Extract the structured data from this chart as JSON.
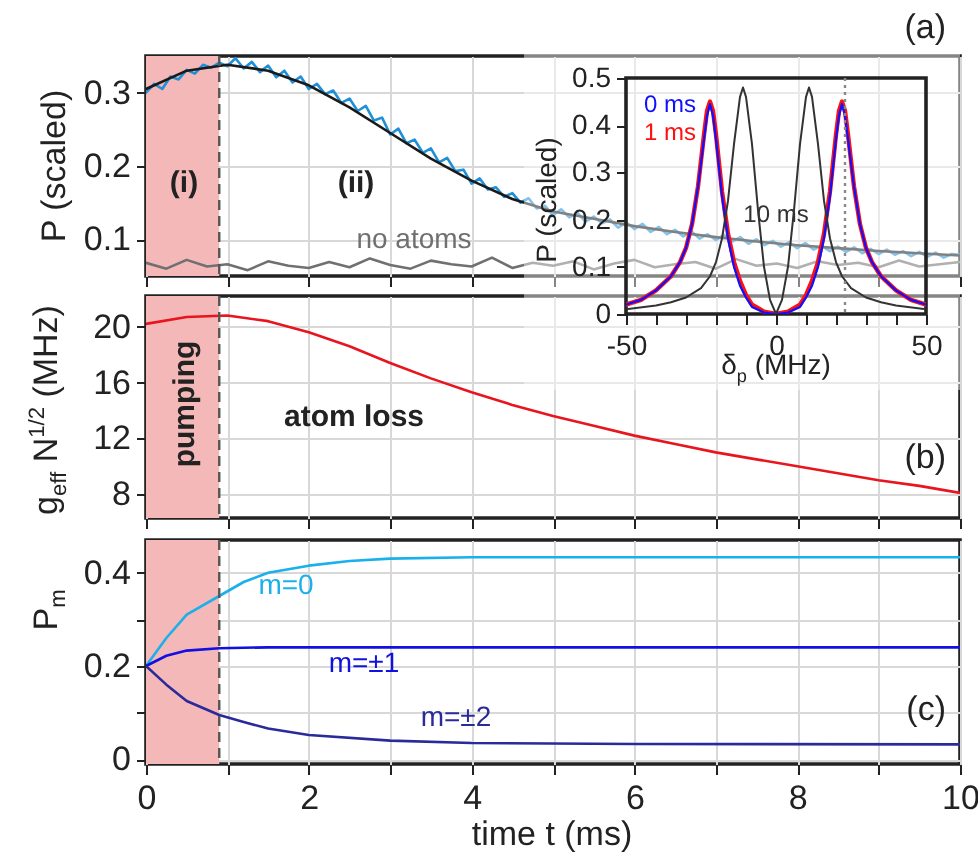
{
  "chart_data": [
    {
      "type": "line",
      "title": "(a)",
      "ylabel": "P (scaled)",
      "xlim": [
        0,
        10
      ],
      "xticks": [
        0,
        1,
        2,
        3,
        4,
        5,
        6,
        7,
        8,
        9,
        10
      ],
      "ylim": [
        0.05,
        0.35
      ],
      "yticks": [
        0.1,
        0.2,
        0.3
      ],
      "grid": true,
      "tick_labels": "y",
      "bands": [
        {
          "axis": "x",
          "from": 0,
          "to": 0.9,
          "label": "(i)",
          "color": "#f5b8b8"
        }
      ],
      "ref_lines": [
        {
          "axis": "x",
          "value": 0.9,
          "color": "#555555",
          "line_style": "dashed"
        }
      ],
      "annotations": [
        "(ii)"
      ],
      "series": [
        {
          "color": "#1e90d8",
          "x": [
            0,
            0.1,
            0.2,
            0.3,
            0.4,
            0.5,
            0.6,
            0.7,
            0.8,
            0.9,
            1,
            1.1,
            1.2,
            1.3,
            1.4,
            1.5,
            1.6,
            1.7,
            1.8,
            1.9,
            2,
            2.1,
            2.2,
            2.3,
            2.4,
            2.5,
            2.6,
            2.7,
            2.8,
            2.9,
            3,
            3.1,
            3.2,
            3.3,
            3.4,
            3.5,
            3.6,
            3.7,
            3.8,
            3.9,
            4,
            4.1,
            4.2,
            4.3,
            4.4,
            4.5,
            4.6,
            4.7,
            4.8,
            4.9,
            5,
            5.1,
            5.2,
            5.3,
            5.4,
            5.5,
            5.6,
            5.7,
            5.8,
            5.9,
            6,
            6.1,
            6.2,
            6.3,
            6.4,
            6.5,
            6.6,
            6.7,
            6.8,
            6.9,
            7,
            7.1,
            7.2,
            7.3,
            7.4,
            7.5,
            7.6,
            7.7,
            7.8,
            7.9,
            8,
            8.1,
            8.2,
            8.3,
            8.4,
            8.5,
            8.6,
            8.7,
            8.8,
            8.9,
            9,
            9.1,
            9.2,
            9.3,
            9.4,
            9.5,
            9.6,
            9.7,
            9.8,
            9.9,
            10
          ],
          "values": [
            0.3,
            0.312,
            0.305,
            0.322,
            0.318,
            0.331,
            0.326,
            0.338,
            0.334,
            0.341,
            0.336,
            0.347,
            0.333,
            0.342,
            0.328,
            0.337,
            0.321,
            0.33,
            0.314,
            0.322,
            0.305,
            0.312,
            0.298,
            0.303,
            0.286,
            0.292,
            0.275,
            0.282,
            0.262,
            0.266,
            0.243,
            0.251,
            0.231,
            0.236,
            0.218,
            0.224,
            0.205,
            0.211,
            0.193,
            0.195,
            0.176,
            0.183,
            0.168,
            0.171,
            0.158,
            0.163,
            0.15,
            0.156,
            0.142,
            0.146,
            0.133,
            0.141,
            0.13,
            0.136,
            0.124,
            0.131,
            0.122,
            0.127,
            0.116,
            0.123,
            0.114,
            0.121,
            0.11,
            0.117,
            0.107,
            0.113,
            0.104,
            0.111,
            0.101,
            0.107,
            0.099,
            0.106,
            0.097,
            0.103,
            0.094,
            0.1,
            0.092,
            0.098,
            0.09,
            0.096,
            0.088,
            0.095,
            0.086,
            0.091,
            0.084,
            0.09,
            0.083,
            0.089,
            0.081,
            0.087,
            0.08,
            0.086,
            0.079,
            0.084,
            0.077,
            0.083,
            0.076,
            0.082,
            0.075,
            0.08,
            0.079
          ]
        },
        {
          "color": "#1a1a1a",
          "x": [
            0,
            0.5,
            1,
            1.5,
            2,
            2.5,
            3,
            3.5,
            4,
            4.5,
            5,
            5.5,
            6,
            6.5,
            7,
            7.5,
            8,
            8.5,
            9,
            9.5,
            10
          ],
          "values": [
            0.305,
            0.33,
            0.338,
            0.33,
            0.31,
            0.28,
            0.245,
            0.21,
            0.18,
            0.155,
            0.138,
            0.128,
            0.118,
            0.11,
            0.103,
            0.097,
            0.092,
            0.088,
            0.084,
            0.081,
            0.078
          ]
        },
        {
          "name": "no atoms",
          "color": "#707070",
          "x": [
            0,
            0.25,
            0.5,
            0.75,
            1,
            1.25,
            1.5,
            1.75,
            2,
            2.25,
            2.5,
            2.75,
            3,
            3.25,
            3.5,
            3.75,
            4,
            4.25,
            4.5,
            4.75,
            5,
            5.25,
            5.5,
            5.75,
            6,
            6.25,
            6.5,
            6.75,
            7,
            7.25,
            7.5,
            7.75,
            8,
            8.25,
            8.5,
            8.75,
            9,
            9.25,
            9.5,
            9.75,
            10
          ],
          "values": [
            0.068,
            0.06,
            0.072,
            0.063,
            0.066,
            0.058,
            0.07,
            0.064,
            0.061,
            0.069,
            0.062,
            0.074,
            0.065,
            0.06,
            0.071,
            0.066,
            0.063,
            0.075,
            0.061,
            0.068,
            0.064,
            0.07,
            0.059,
            0.067,
            0.072,
            0.062,
            0.066,
            0.069,
            0.06,
            0.073,
            0.064,
            0.067,
            0.061,
            0.07,
            0.065,
            0.068,
            0.062,
            0.071,
            0.063,
            0.066,
            0.069
          ]
        }
      ]
    },
    {
      "type": "line",
      "xlabel": "δ$_{p}$ (MHz)",
      "ylabel": "P (scaled)",
      "xlim": [
        -50,
        50
      ],
      "xticks": [
        -50,
        {
          "value": -40,
          "label": null
        },
        {
          "value": -30,
          "label": null
        },
        {
          "value": -20,
          "label": null
        },
        {
          "value": -10,
          "label": null
        },
        0,
        {
          "value": 10,
          "label": null
        },
        {
          "value": 20,
          "label": null
        },
        {
          "value": 30,
          "label": null
        },
        {
          "value": 40,
          "label": null
        },
        50
      ],
      "ylim": [
        0,
        0.5
      ],
      "yticks": [
        0,
        0.1,
        0.2,
        0.3,
        0.4,
        0.5
      ],
      "ref_lines": [
        {
          "axis": "x",
          "value": 23,
          "color": "#888888",
          "line_style": "dotted"
        }
      ],
      "series": [
        {
          "name": "0 ms",
          "color": "#1010ff",
          "x": [
            -50,
            -45,
            -40,
            -35,
            -32,
            -30,
            -28,
            -26,
            -24,
            -23,
            -22,
            -21,
            -20,
            -18,
            -16,
            -14,
            -12,
            -10,
            -8,
            -4,
            0,
            4,
            8,
            10,
            12,
            14,
            16,
            18,
            20,
            21,
            22,
            23,
            24,
            26,
            28,
            30,
            32,
            35,
            40,
            45,
            50
          ],
          "values": [
            0.02,
            0.03,
            0.05,
            0.08,
            0.11,
            0.14,
            0.19,
            0.27,
            0.37,
            0.42,
            0.445,
            0.42,
            0.37,
            0.25,
            0.16,
            0.1,
            0.06,
            0.035,
            0.015,
            0.003,
            0,
            0.003,
            0.015,
            0.035,
            0.06,
            0.1,
            0.16,
            0.25,
            0.37,
            0.42,
            0.445,
            0.42,
            0.37,
            0.27,
            0.19,
            0.14,
            0.11,
            0.08,
            0.05,
            0.03,
            0.02
          ]
        },
        {
          "name": "1 ms",
          "color": "#ff1010",
          "x": [
            -50,
            -45,
            -40,
            -35,
            -32,
            -30,
            -28,
            -26,
            -24,
            -23,
            -22,
            -21,
            -20,
            -18,
            -16,
            -14,
            -12,
            -10,
            -8,
            -4,
            0,
            4,
            8,
            10,
            12,
            14,
            16,
            18,
            20,
            21,
            22,
            23,
            24,
            26,
            28,
            30,
            32,
            35,
            40,
            45,
            50
          ],
          "values": [
            0.02,
            0.03,
            0.05,
            0.08,
            0.11,
            0.14,
            0.19,
            0.27,
            0.38,
            0.43,
            0.45,
            0.43,
            0.38,
            0.26,
            0.17,
            0.11,
            0.07,
            0.04,
            0.02,
            0.005,
            0,
            0.005,
            0.02,
            0.04,
            0.07,
            0.11,
            0.17,
            0.26,
            0.38,
            0.43,
            0.45,
            0.43,
            0.38,
            0.27,
            0.19,
            0.14,
            0.11,
            0.08,
            0.05,
            0.03,
            0.02
          ]
        },
        {
          "name": "10 ms",
          "color": "#333333",
          "x": [
            -50,
            -40,
            -35,
            -30,
            -25,
            -22,
            -20,
            -18,
            -16,
            -14,
            -12,
            -11,
            -10,
            -8,
            -6,
            -4,
            -2,
            0,
            2,
            4,
            6,
            8,
            10,
            11,
            12,
            14,
            16,
            18,
            20,
            22,
            25,
            30,
            35,
            40,
            50
          ],
          "values": [
            0.01,
            0.018,
            0.025,
            0.035,
            0.055,
            0.08,
            0.11,
            0.16,
            0.24,
            0.36,
            0.46,
            0.48,
            0.46,
            0.36,
            0.22,
            0.1,
            0.03,
            0,
            0.03,
            0.1,
            0.22,
            0.36,
            0.46,
            0.48,
            0.46,
            0.36,
            0.24,
            0.16,
            0.11,
            0.08,
            0.055,
            0.035,
            0.025,
            0.018,
            0.01
          ]
        }
      ]
    },
    {
      "type": "line",
      "title": "(b)",
      "ylabel": "g$_{eff}$ N$^{1/2}$ (MHz)",
      "xlim": [
        0,
        10
      ],
      "xticks": [
        0,
        1,
        2,
        3,
        4,
        5,
        6,
        7,
        8,
        9,
        10
      ],
      "ylim": [
        6.3,
        22.2
      ],
      "yticks": [
        8,
        12,
        16,
        20
      ],
      "grid": true,
      "tick_labels": "y",
      "bands": [
        {
          "axis": "x",
          "from": 0,
          "to": 0.9,
          "label": "pumping",
          "color": "#f5b8b8"
        }
      ],
      "ref_lines": [
        {
          "axis": "x",
          "value": 0.9,
          "color": "#555555",
          "line_style": "dashed"
        }
      ],
      "annotations": [
        "atom loss"
      ],
      "series": [
        {
          "color": "#e8141e",
          "x": [
            0,
            0.5,
            1,
            1.5,
            2,
            2.5,
            3,
            3.5,
            4,
            4.5,
            5,
            5.5,
            6,
            6.5,
            7,
            7.5,
            8,
            8.5,
            9,
            9.5,
            10
          ],
          "values": [
            20.2,
            20.7,
            20.8,
            20.4,
            19.6,
            18.6,
            17.4,
            16.3,
            15.3,
            14.4,
            13.6,
            12.9,
            12.2,
            11.6,
            11,
            10.5,
            10,
            9.5,
            9,
            8.6,
            8.1
          ]
        }
      ]
    },
    {
      "type": "line",
      "title": "(c)",
      "xlabel": "time t (ms)",
      "ylabel": "P$_{m}$",
      "xlim": [
        0,
        10
      ],
      "xticks": [
        0,
        {
          "value": 1,
          "label": null
        },
        2,
        {
          "value": 3,
          "label": null
        },
        4,
        {
          "value": 5,
          "label": null
        },
        6,
        {
          "value": 7,
          "label": null
        },
        8,
        {
          "value": 9,
          "label": null
        },
        10
      ],
      "ylim": [
        -0.01,
        0.47
      ],
      "yticks": [
        0,
        {
          "value": 0.1,
          "label": null
        },
        0.2,
        {
          "value": 0.3,
          "label": null
        },
        0.4
      ],
      "grid": true,
      "bands": [
        {
          "axis": "x",
          "from": 0,
          "to": 0.9,
          "color": "#f5b8b8"
        }
      ],
      "ref_lines": [
        {
          "axis": "x",
          "value": 0.9,
          "color": "#555555",
          "line_style": "dashed"
        }
      ],
      "series": [
        {
          "name": "m=0",
          "color": "#1ab0ec",
          "x": [
            0,
            0.25,
            0.5,
            0.9,
            1.2,
            1.5,
            2,
            2.5,
            3,
            4,
            6,
            10
          ],
          "values": [
            0.2,
            0.26,
            0.31,
            0.35,
            0.38,
            0.4,
            0.415,
            0.425,
            0.43,
            0.433,
            0.433,
            0.433
          ]
        },
        {
          "name": "m=±1",
          "color": "#1010e0",
          "x": [
            0,
            0.25,
            0.5,
            0.9,
            1.5,
            3,
            10
          ],
          "values": [
            0.2,
            0.222,
            0.233,
            0.238,
            0.24,
            0.24,
            0.24
          ]
        },
        {
          "name": "m=±2",
          "color": "#2a2a9a",
          "x": [
            0,
            0.25,
            0.5,
            0.9,
            1.2,
            1.5,
            2,
            3,
            4,
            6,
            10
          ],
          "values": [
            0.2,
            0.16,
            0.125,
            0.095,
            0.08,
            0.066,
            0.052,
            0.04,
            0.035,
            0.033,
            0.032
          ]
        }
      ]
    }
  ]
}
